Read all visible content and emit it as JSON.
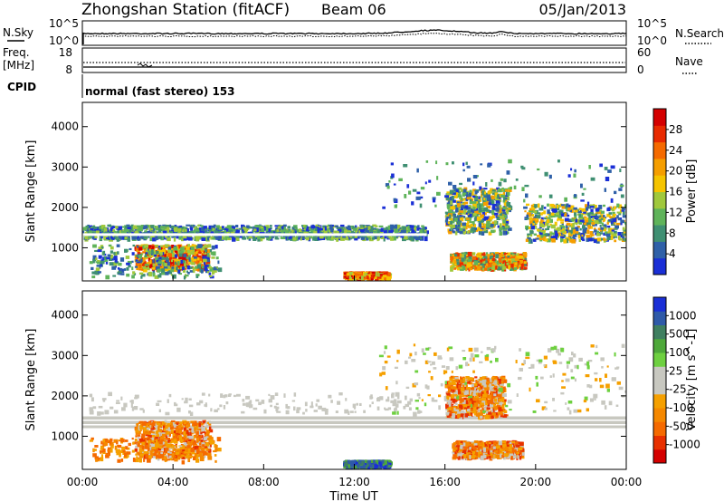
{
  "header": {
    "title": "Zhongshan Station (fitACF)",
    "beam": "Beam 06",
    "date": "05/Jan/2013"
  },
  "noise_panel": {
    "left_label": "N.Sky",
    "right_label": "N.Search",
    "left_ticks": [
      "10^5",
      "10^0"
    ],
    "right_ticks": [
      "10^5",
      "10^0"
    ]
  },
  "freq_panel": {
    "left_label": "Freq.",
    "left_unit": "[MHz]",
    "left_ticks": [
      "18",
      "8"
    ],
    "right_label": "Nave",
    "right_ticks": [
      "60",
      "0"
    ]
  },
  "cpid": {
    "label": "CPID",
    "mode": "normal (fast stereo) 153"
  },
  "legend_lines": {
    "n_search_style": "dotted",
    "nave_style": "dotted"
  },
  "chart_data": [
    {
      "type": "heatmap",
      "name": "power",
      "ylabel": "Slant Range [km]",
      "ylim": [
        180,
        4600
      ],
      "yticks": [
        "1000",
        "2000",
        "3000",
        "4000"
      ],
      "colorbar": {
        "label": "Power [dB]",
        "ticks": [
          "4",
          "8",
          "12",
          "16",
          "20",
          "24",
          "28"
        ],
        "colors": [
          "#1a2fd6",
          "#2f60a8",
          "#3f8f72",
          "#5fb35a",
          "#a0c83c",
          "#f5c400",
          "#f59e00",
          "#f56a00",
          "#e82a00",
          "#d40000"
        ]
      },
      "regions": [
        {
          "t": [
            0.0,
            15.2
          ],
          "r": [
            1250,
            1580
          ],
          "level": "weak-moderate"
        },
        {
          "t": [
            2.3,
            5.5
          ],
          "r": [
            500,
            1100
          ],
          "level": "strong"
        },
        {
          "t": [
            16.0,
            18.8
          ],
          "r": [
            1400,
            2500
          ],
          "level": "moderate"
        },
        {
          "t": [
            16.2,
            19.5
          ],
          "r": [
            500,
            900
          ],
          "level": "moderate-strong"
        },
        {
          "t": [
            11.5,
            13.5
          ],
          "r": [
            280,
            420
          ],
          "level": "strong"
        },
        {
          "t": [
            19.5,
            24.0
          ],
          "r": [
            1200,
            2100
          ],
          "level": "moderate"
        }
      ]
    },
    {
      "type": "heatmap",
      "name": "velocity",
      "xlabel": "Time UT",
      "ylabel": "Slant Range [km]",
      "ylim": [
        180,
        4600
      ],
      "xlim": [
        0,
        24
      ],
      "xticks": [
        "00:00",
        "04:00",
        "08:00",
        "12:00",
        "16:00",
        "20:00",
        "00:00"
      ],
      "yticks": [
        "1000",
        "2000",
        "3000",
        "4000"
      ],
      "colorbar": {
        "label": "Velocity [m s^-1]",
        "ticks": [
          "1000",
          "500",
          "100",
          "25",
          "-25",
          "-100",
          "-500",
          "-1000"
        ],
        "colors": [
          "#1a2fd6",
          "#2f5aa8",
          "#3f7f60",
          "#4ea83a",
          "#6ed040",
          "#c8c8c0",
          "#c8c8c0",
          "#f5a000",
          "#f58800",
          "#f56a00",
          "#e83000",
          "#d40000"
        ]
      },
      "regions": [
        {
          "t": [
            0.0,
            24.0
          ],
          "r": [
            1200,
            1500
          ],
          "level": "ground-scatter"
        },
        {
          "t": [
            2.3,
            5.6
          ],
          "r": [
            500,
            1400
          ],
          "level": "negative"
        },
        {
          "t": [
            16.0,
            18.6
          ],
          "r": [
            1500,
            2500
          ],
          "level": "negative"
        },
        {
          "t": [
            16.3,
            19.4
          ],
          "r": [
            500,
            900
          ],
          "level": "negative"
        },
        {
          "t": [
            11.5,
            13.5
          ],
          "r": [
            280,
            420
          ],
          "level": "positive"
        }
      ]
    }
  ]
}
